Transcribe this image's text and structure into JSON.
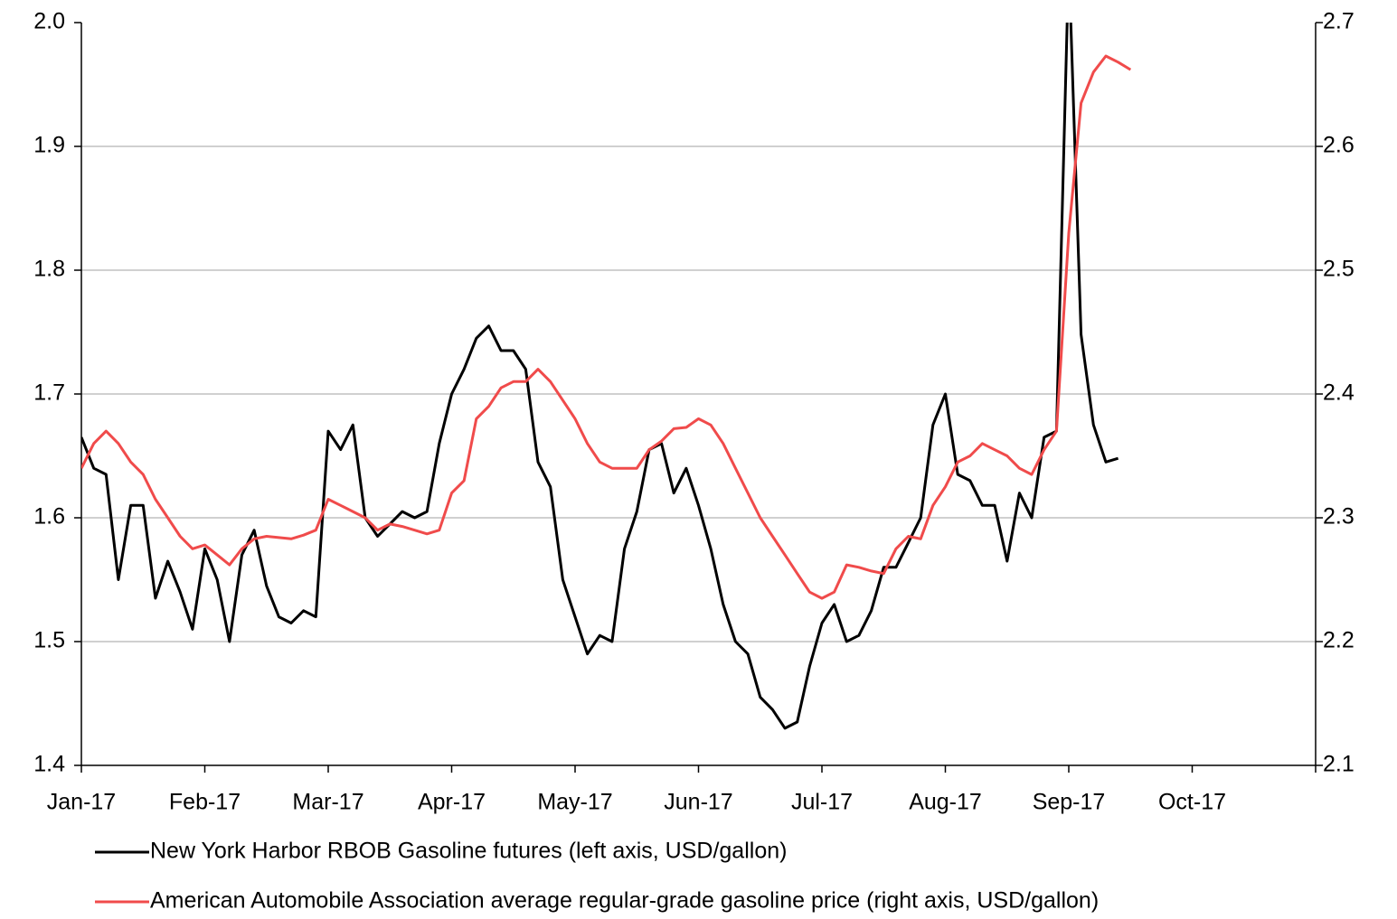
{
  "chart_data": {
    "type": "line",
    "categories": [
      "Jan-17",
      "Feb-17",
      "Mar-17",
      "Apr-17",
      "May-17",
      "Jun-17",
      "Jul-17",
      "Aug-17",
      "Sep-17",
      "Oct-17",
      null
    ],
    "x": [
      "Jan-17",
      "Jan-17",
      "Jan-17",
      "Jan-17",
      "Jan-17",
      "Jan-17",
      "Jan-17",
      "Jan-17",
      "Jan-17",
      "Jan-17",
      "Feb-17",
      "Feb-17",
      "Feb-17",
      "Feb-17",
      "Feb-17",
      "Feb-17",
      "Feb-17",
      "Feb-17",
      "Feb-17",
      "Feb-17",
      "Mar-17",
      "Mar-17",
      "Mar-17",
      "Mar-17",
      "Mar-17",
      "Mar-17",
      "Mar-17",
      "Mar-17",
      "Mar-17",
      "Mar-17",
      "Apr-17",
      "Apr-17",
      "Apr-17",
      "Apr-17",
      "Apr-17",
      "Apr-17",
      "Apr-17",
      "Apr-17",
      "Apr-17",
      "Apr-17",
      "May-17",
      "May-17",
      "May-17",
      "May-17",
      "May-17",
      "May-17",
      "May-17",
      "May-17",
      "May-17",
      "May-17",
      "Jun-17",
      "Jun-17",
      "Jun-17",
      "Jun-17",
      "Jun-17",
      "Jun-17",
      "Jun-17",
      "Jun-17",
      "Jun-17",
      "Jun-17",
      "Jul-17",
      "Jul-17",
      "Jul-17",
      "Jul-17",
      "Jul-17",
      "Jul-17",
      "Jul-17",
      "Jul-17",
      "Jul-17",
      "Jul-17",
      "Aug-17",
      "Aug-17",
      "Aug-17",
      "Aug-17",
      "Aug-17",
      "Aug-17",
      "Aug-17",
      "Aug-17",
      "Aug-17",
      "Aug-17",
      "Sep-17",
      "Sep-17",
      "Sep-17",
      "Sep-17",
      "Sep-17",
      "Sep-17",
      "Sep-17",
      "Sep-17",
      "Sep-17",
      "Sep-17"
    ],
    "series": [
      {
        "name": "New York Harbor RBOB Gasoline futures (left axis, USD/gallon)",
        "color": "#000000",
        "values": [
          1.665,
          1.64,
          1.635,
          1.55,
          1.61,
          1.61,
          1.535,
          1.565,
          1.54,
          1.51,
          1.575,
          1.55,
          1.5,
          1.57,
          1.59,
          1.545,
          1.52,
          1.515,
          1.525,
          1.52,
          1.67,
          1.655,
          1.675,
          1.6,
          1.585,
          1.595,
          1.605,
          1.6,
          1.605,
          1.66,
          1.7,
          1.72,
          1.745,
          1.755,
          1.735,
          1.735,
          1.72,
          1.645,
          1.625,
          1.55,
          1.52,
          1.49,
          1.505,
          1.5,
          1.575,
          1.605,
          1.655,
          1.66,
          1.62,
          1.64,
          1.61,
          1.575,
          1.53,
          1.5,
          1.49,
          1.455,
          1.445,
          1.43,
          1.435,
          1.48,
          1.515,
          1.53,
          1.5,
          1.505,
          1.525,
          1.56,
          1.56,
          1.58,
          1.6,
          1.675,
          1.7,
          1.635,
          1.63,
          1.61,
          1.61,
          1.565,
          1.62,
          1.6,
          1.665,
          1.67,
          2.05,
          1.748,
          1.675,
          1.645,
          1.648,
          null,
          null,
          null,
          null,
          null
        ]
      },
      {
        "name": "American Automobile Association average regular-grade gasoline price (right axis, USD/gallon)",
        "color": "#f04b4b",
        "axis": "y2",
        "values": [
          2.34,
          2.36,
          2.37,
          2.36,
          2.345,
          2.335,
          2.315,
          2.3,
          2.285,
          2.275,
          2.278,
          2.27,
          2.262,
          2.275,
          2.283,
          2.285,
          2.284,
          2.283,
          2.286,
          2.29,
          2.315,
          2.31,
          2.305,
          2.3,
          2.29,
          2.295,
          2.293,
          2.29,
          2.287,
          2.29,
          2.32,
          2.33,
          2.38,
          2.39,
          2.405,
          2.41,
          2.41,
          2.42,
          2.41,
          2.395,
          2.38,
          2.36,
          2.345,
          2.34,
          2.34,
          2.34,
          2.355,
          2.362,
          2.372,
          2.373,
          2.38,
          2.375,
          2.36,
          2.34,
          2.32,
          2.3,
          2.285,
          2.27,
          2.255,
          2.24,
          2.235,
          2.24,
          2.262,
          2.26,
          2.257,
          2.255,
          2.275,
          2.285,
          2.283,
          2.31,
          2.325,
          2.345,
          2.35,
          2.36,
          2.355,
          2.35,
          2.34,
          2.335,
          2.355,
          2.37,
          2.53,
          2.635,
          2.66,
          2.673,
          2.668,
          2.662,
          null,
          null,
          null,
          null
        ]
      }
    ],
    "ylim": [
      1.4,
      2.0
    ],
    "yticks": [
      1.4,
      1.5,
      1.6,
      1.7,
      1.8,
      1.9,
      {
        "value": 2.0,
        "label": "2.0"
      }
    ],
    "y2lim": [
      2.1,
      2.7
    ],
    "y2ticks": [
      2.1,
      2.2,
      2.3,
      2.4,
      2.5,
      2.6,
      2.7
    ],
    "grid": true,
    "legend": "bottom"
  }
}
